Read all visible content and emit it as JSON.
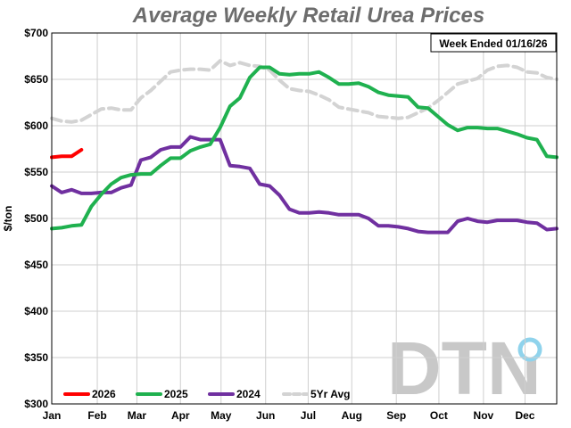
{
  "chart_data": {
    "type": "line",
    "title": "Average Weekly Retail Urea Prices",
    "ylabel": "$/ton",
    "xlabel": "",
    "note": "Week Ended 01/16/26",
    "logo": "DTN",
    "ylim": [
      300,
      700
    ],
    "yticks": [
      300,
      350,
      400,
      450,
      500,
      550,
      600,
      650,
      700
    ],
    "ytick_labels": [
      "$300",
      "$350",
      "$400",
      "$450",
      "$500",
      "$550",
      "$600",
      "$650",
      "$700"
    ],
    "xlim": [
      1,
      52
    ],
    "month_labels": [
      "Jan",
      "Feb",
      "Mar",
      "Apr",
      "May",
      "Jun",
      "Jul",
      "Aug",
      "Sep",
      "Oct",
      "Nov",
      "Dec"
    ],
    "month_weeks": [
      1,
      5.6,
      9.6,
      14,
      18.1,
      22.6,
      26.9,
      31.3,
      35.8,
      40.1,
      44.6,
      48.8
    ],
    "grid": true,
    "legend_position": "bottom-left",
    "series": [
      {
        "name": "2026",
        "color": "#ff0000",
        "dashed": false,
        "x": [
          1,
          2,
          3,
          4
        ],
        "y": [
          566,
          567,
          567,
          574
        ]
      },
      {
        "name": "2025",
        "color": "#1fb14f",
        "dashed": false,
        "x": [
          1,
          2,
          3,
          4,
          5,
          6,
          7,
          8,
          9,
          10,
          11,
          12,
          13,
          14,
          15,
          16,
          17,
          18,
          19,
          20,
          21,
          22,
          23,
          24,
          25,
          26,
          27,
          28,
          29,
          30,
          31,
          32,
          33,
          34,
          35,
          36,
          37,
          38,
          39,
          40,
          41,
          42,
          43,
          44,
          45,
          46,
          47,
          48,
          49,
          50,
          51,
          52
        ],
        "y": [
          489,
          490,
          492,
          493,
          513,
          526,
          537,
          544,
          547,
          548,
          548,
          557,
          565,
          565,
          573,
          577,
          580,
          598,
          621,
          630,
          652,
          663,
          663,
          656,
          655,
          656,
          656,
          658,
          652,
          645,
          645,
          646,
          642,
          636,
          633,
          632,
          631,
          620,
          619,
          610,
          601,
          595,
          598,
          598,
          597,
          597,
          594,
          591,
          587,
          585,
          567,
          566
        ]
      },
      {
        "name": "2024",
        "color": "#7030a0",
        "dashed": false,
        "x": [
          1,
          2,
          3,
          4,
          5,
          6,
          7,
          8,
          9,
          10,
          11,
          12,
          13,
          14,
          15,
          16,
          17,
          18,
          19,
          20,
          21,
          22,
          23,
          24,
          25,
          26,
          27,
          28,
          29,
          30,
          31,
          32,
          33,
          34,
          35,
          36,
          37,
          38,
          39,
          40,
          41,
          42,
          43,
          44,
          45,
          46,
          47,
          48,
          49,
          50,
          51,
          52
        ],
        "y": [
          535,
          528,
          531,
          527,
          527,
          528,
          528,
          533,
          536,
          563,
          566,
          574,
          577,
          577,
          588,
          585,
          585,
          585,
          557,
          556,
          554,
          537,
          535,
          525,
          510,
          506,
          506,
          507,
          506,
          504,
          504,
          504,
          500,
          492,
          492,
          491,
          489,
          486,
          485,
          485,
          485,
          497,
          500,
          497,
          496,
          498,
          498,
          498,
          496,
          495,
          488,
          489
        ]
      },
      {
        "name": "5Yr Avg",
        "color": "#d3d3d3",
        "dashed": true,
        "x": [
          1,
          2,
          3,
          4,
          5,
          6,
          7,
          8,
          9,
          10,
          11,
          12,
          13,
          14,
          15,
          16,
          17,
          18,
          19,
          20,
          21,
          22,
          23,
          24,
          25,
          26,
          27,
          28,
          29,
          30,
          31,
          32,
          33,
          34,
          35,
          36,
          37,
          38,
          39,
          40,
          41,
          42,
          43,
          44,
          45,
          46,
          47,
          48,
          49,
          50,
          51,
          52
        ],
        "y": [
          608,
          605,
          604,
          606,
          612,
          618,
          619,
          617,
          617,
          630,
          638,
          648,
          658,
          660,
          661,
          661,
          660,
          670,
          665,
          668,
          665,
          664,
          660,
          649,
          640,
          638,
          637,
          633,
          628,
          620,
          618,
          616,
          614,
          610,
          609,
          608,
          609,
          614,
          619,
          627,
          636,
          645,
          648,
          651,
          660,
          664,
          665,
          663,
          658,
          657,
          652,
          650
        ]
      }
    ]
  }
}
